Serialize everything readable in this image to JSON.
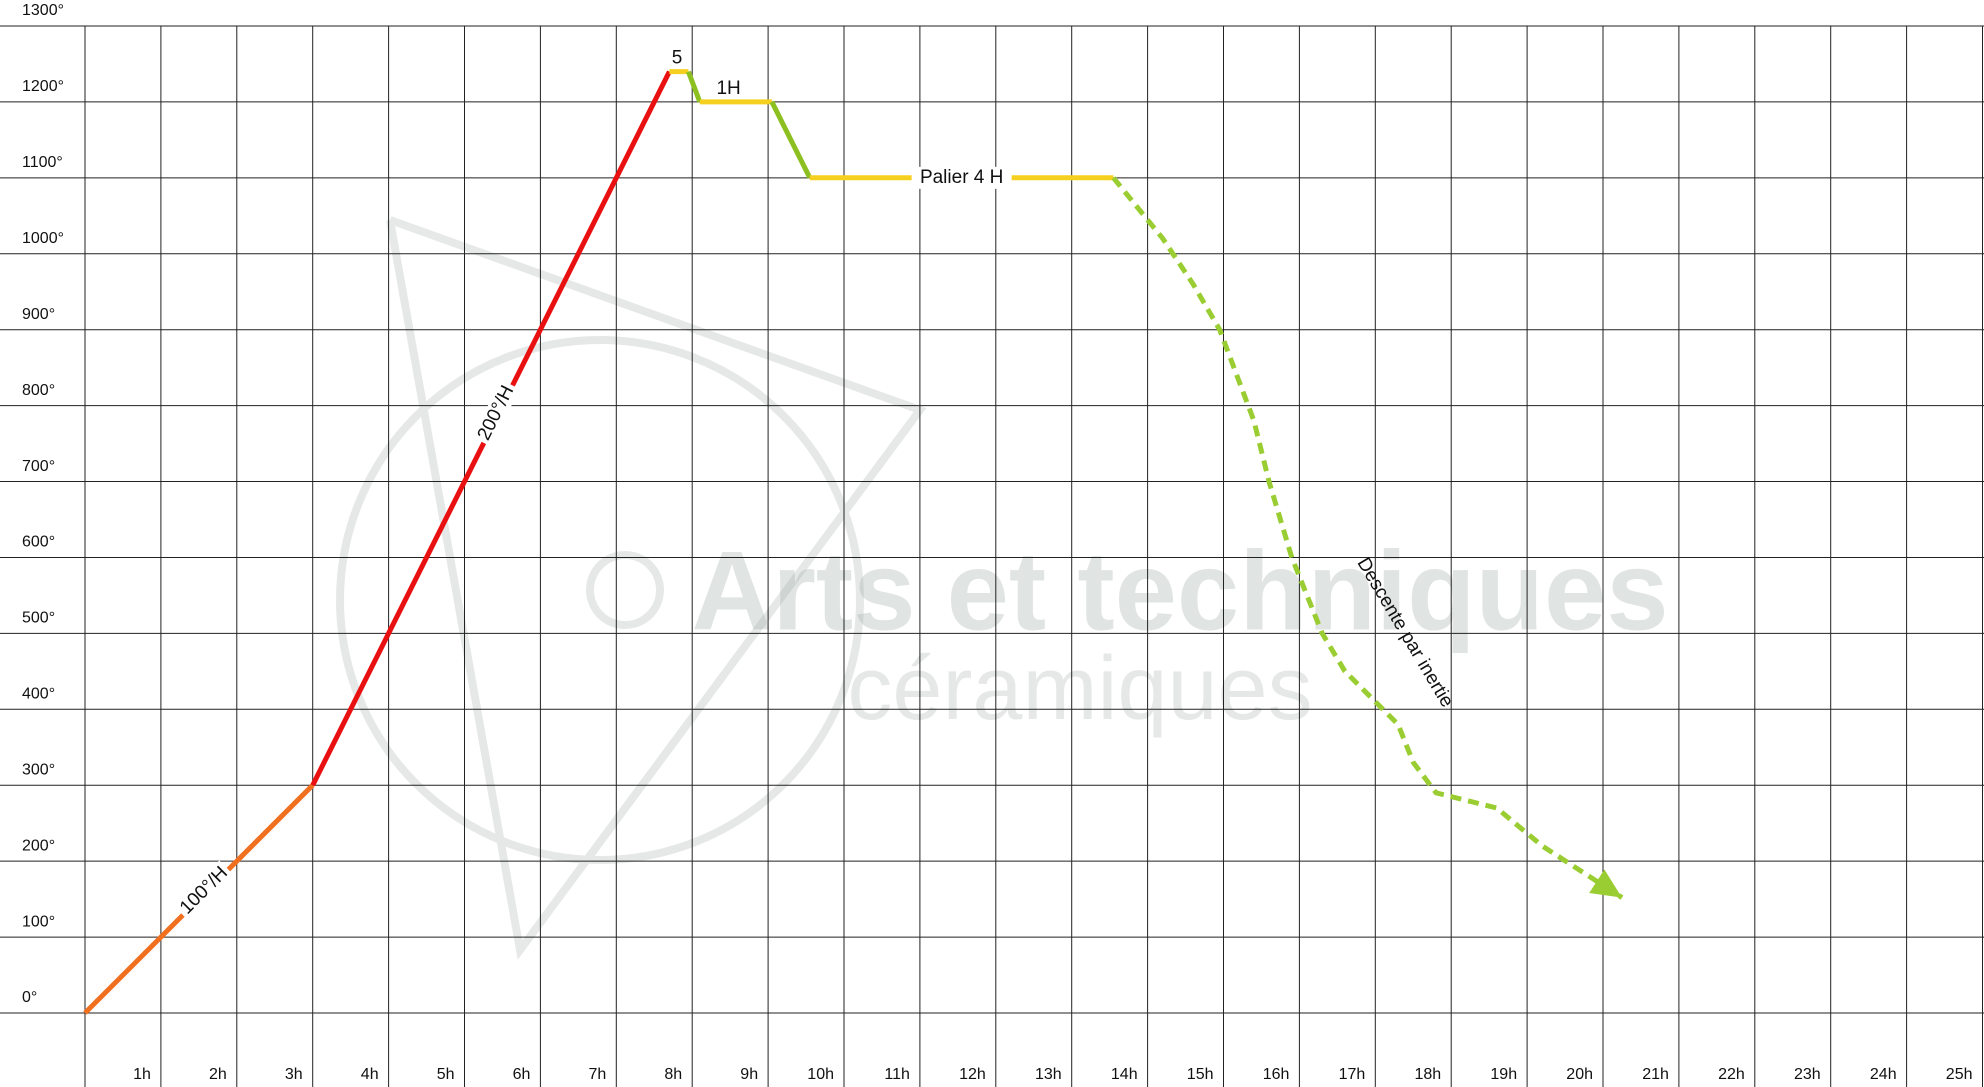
{
  "chart_data": {
    "type": "line",
    "watermark": {
      "title": "Arts et techniques",
      "subtitle": "céramiques"
    },
    "xlim": [
      0,
      25
    ],
    "ylim": [
      0,
      1300
    ],
    "xticks": [
      {
        "value": 1,
        "label": "1h"
      },
      {
        "value": 2,
        "label": "2h"
      },
      {
        "value": 3,
        "label": "3h"
      },
      {
        "value": 4,
        "label": "4h"
      },
      {
        "value": 5,
        "label": "5h"
      },
      {
        "value": 6,
        "label": "6h"
      },
      {
        "value": 7,
        "label": "7h"
      },
      {
        "value": 8,
        "label": "8h"
      },
      {
        "value": 9,
        "label": "9h"
      },
      {
        "value": 10,
        "label": "10h"
      },
      {
        "value": 11,
        "label": "11h"
      },
      {
        "value": 12,
        "label": "12h"
      },
      {
        "value": 13,
        "label": "13h"
      },
      {
        "value": 14,
        "label": "14h"
      },
      {
        "value": 15,
        "label": "15h"
      },
      {
        "value": 16,
        "label": "16h"
      },
      {
        "value": 17,
        "label": "17h"
      },
      {
        "value": 18,
        "label": "18h"
      },
      {
        "value": 19,
        "label": "19h"
      },
      {
        "value": 20,
        "label": "20h"
      },
      {
        "value": 21,
        "label": "21h"
      },
      {
        "value": 22,
        "label": "22h"
      },
      {
        "value": 23,
        "label": "23h"
      },
      {
        "value": 24,
        "label": "24h"
      },
      {
        "value": 25,
        "label": "25h"
      }
    ],
    "yticks": [
      {
        "value": 0,
        "label": "0°"
      },
      {
        "value": 100,
        "label": "100°"
      },
      {
        "value": 200,
        "label": "200°"
      },
      {
        "value": 300,
        "label": "300°"
      },
      {
        "value": 400,
        "label": "400°"
      },
      {
        "value": 500,
        "label": "500°"
      },
      {
        "value": 600,
        "label": "600°"
      },
      {
        "value": 700,
        "label": "700°"
      },
      {
        "value": 800,
        "label": "800°"
      },
      {
        "value": 900,
        "label": "900°"
      },
      {
        "value": 1000,
        "label": "1000°"
      },
      {
        "value": 1100,
        "label": "1100°"
      },
      {
        "value": 1200,
        "label": "1200°"
      },
      {
        "value": 1300,
        "label": "1300°"
      }
    ],
    "grid": true,
    "series": [
      {
        "label": "100°/H",
        "color": "#f07020",
        "x": [
          0,
          3
        ],
        "values": [
          0,
          300
        ]
      },
      {
        "label": "200°/H",
        "color": "#e81010",
        "x": [
          3,
          7.7
        ],
        "values": [
          300,
          1240
        ]
      },
      {
        "label": "5",
        "color": "#f5d020",
        "x": [
          7.7,
          7.95
        ],
        "values": [
          1240,
          1240
        ]
      },
      {
        "color": "#8cc020",
        "x": [
          7.95,
          8.1
        ],
        "values": [
          1240,
          1200
        ]
      },
      {
        "label": "1H",
        "color": "#f5d020",
        "x": [
          8.1,
          9.05
        ],
        "values": [
          1200,
          1200
        ]
      },
      {
        "color": "#8cc020",
        "x": [
          9.05,
          9.55
        ],
        "values": [
          1200,
          1100
        ]
      },
      {
        "label": "Palier 4 H",
        "color": "#f5d020",
        "x": [
          9.55,
          13.55
        ],
        "values": [
          1100,
          1100
        ]
      },
      {
        "label": "Descente par inertie",
        "color": "#9acd32",
        "dashed": true,
        "arrow": true,
        "x": [
          13.55,
          14.2,
          14.6,
          14.95,
          15.4,
          15.6,
          15.9,
          16.3,
          16.6,
          17,
          17.3,
          17.5,
          17.8,
          18.2,
          18.6,
          19.2,
          20.25
        ],
        "values": [
          1100,
          1020,
          960,
          900,
          780,
          700,
          600,
          500,
          450,
          410,
          380,
          330,
          290,
          280,
          270,
          220,
          152
        ]
      }
    ]
  }
}
